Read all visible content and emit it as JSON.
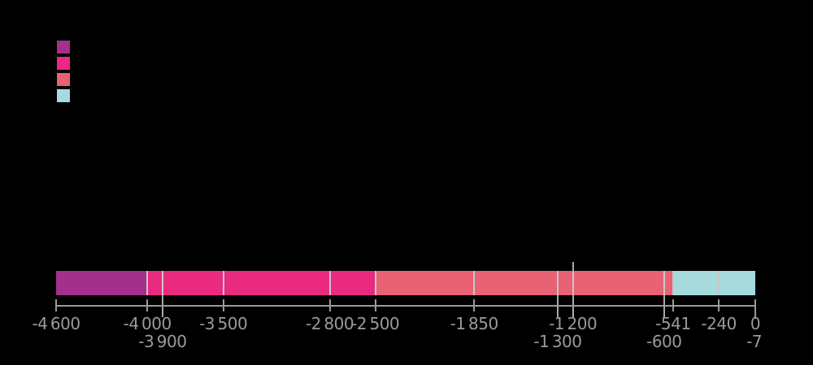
{
  "figure": {
    "background_color": "#000000",
    "legend": {
      "position": "upper-left",
      "items": [
        {
          "swatch_color": "#a3308a"
        },
        {
          "swatch_color": "#e92a7f"
        },
        {
          "swatch_color": "#e96274"
        },
        {
          "swatch_color": "#a6dadd"
        }
      ]
    }
  },
  "chart_data": {
    "type": "bar",
    "subtype": "horizontal-stacked-timeline",
    "title": "",
    "xlabel": "",
    "ylabel": "",
    "xlim": [
      -4600,
      0
    ],
    "grid": false,
    "legend_position": "upper-left",
    "axis_color": "#9a9a9a",
    "divider_color": "#c8c8c8",
    "segments": [
      {
        "start": -4600,
        "end": -4000,
        "color": "#a3308a"
      },
      {
        "start": -4000,
        "end": -2500,
        "color": "#e92a7f"
      },
      {
        "start": -2500,
        "end": -541,
        "color": "#e96274"
      },
      {
        "start": -541,
        "end": 0,
        "color": "#a6dadd"
      }
    ],
    "boundaries": [
      -4600,
      -4000,
      -3900,
      -3500,
      -2800,
      -2500,
      -1850,
      -1300,
      -1200,
      -600,
      -541,
      -240,
      -7,
      0
    ],
    "bar_dividers": [
      -4000,
      -3900,
      -3500,
      -2800,
      -2500,
      -1850,
      -1300,
      -1200,
      -600,
      -541,
      -240
    ],
    "connector_ticks": [
      -3900,
      -1300,
      -1200,
      -600
    ],
    "marker_above_bar": -1200,
    "ticks_row1": [
      {
        "value": -4600,
        "label": "-4 600"
      },
      {
        "value": -4000,
        "label": "-4 000"
      },
      {
        "value": -3500,
        "label": "-3 500"
      },
      {
        "value": -2800,
        "label": "-2 800"
      },
      {
        "value": -2500,
        "label": "-2 500"
      },
      {
        "value": -1850,
        "label": "-1 850"
      },
      {
        "value": -1200,
        "label": "-1 200"
      },
      {
        "value": -541,
        "label": "-541"
      },
      {
        "value": -240,
        "label": "-240"
      },
      {
        "value": 0,
        "label": "0"
      }
    ],
    "ticks_row2": [
      {
        "value": -3900,
        "label": "-3 900"
      },
      {
        "value": -1300,
        "label": "-1 300"
      },
      {
        "value": -600,
        "label": "-600"
      },
      {
        "value": -7,
        "label": "-7"
      }
    ]
  }
}
